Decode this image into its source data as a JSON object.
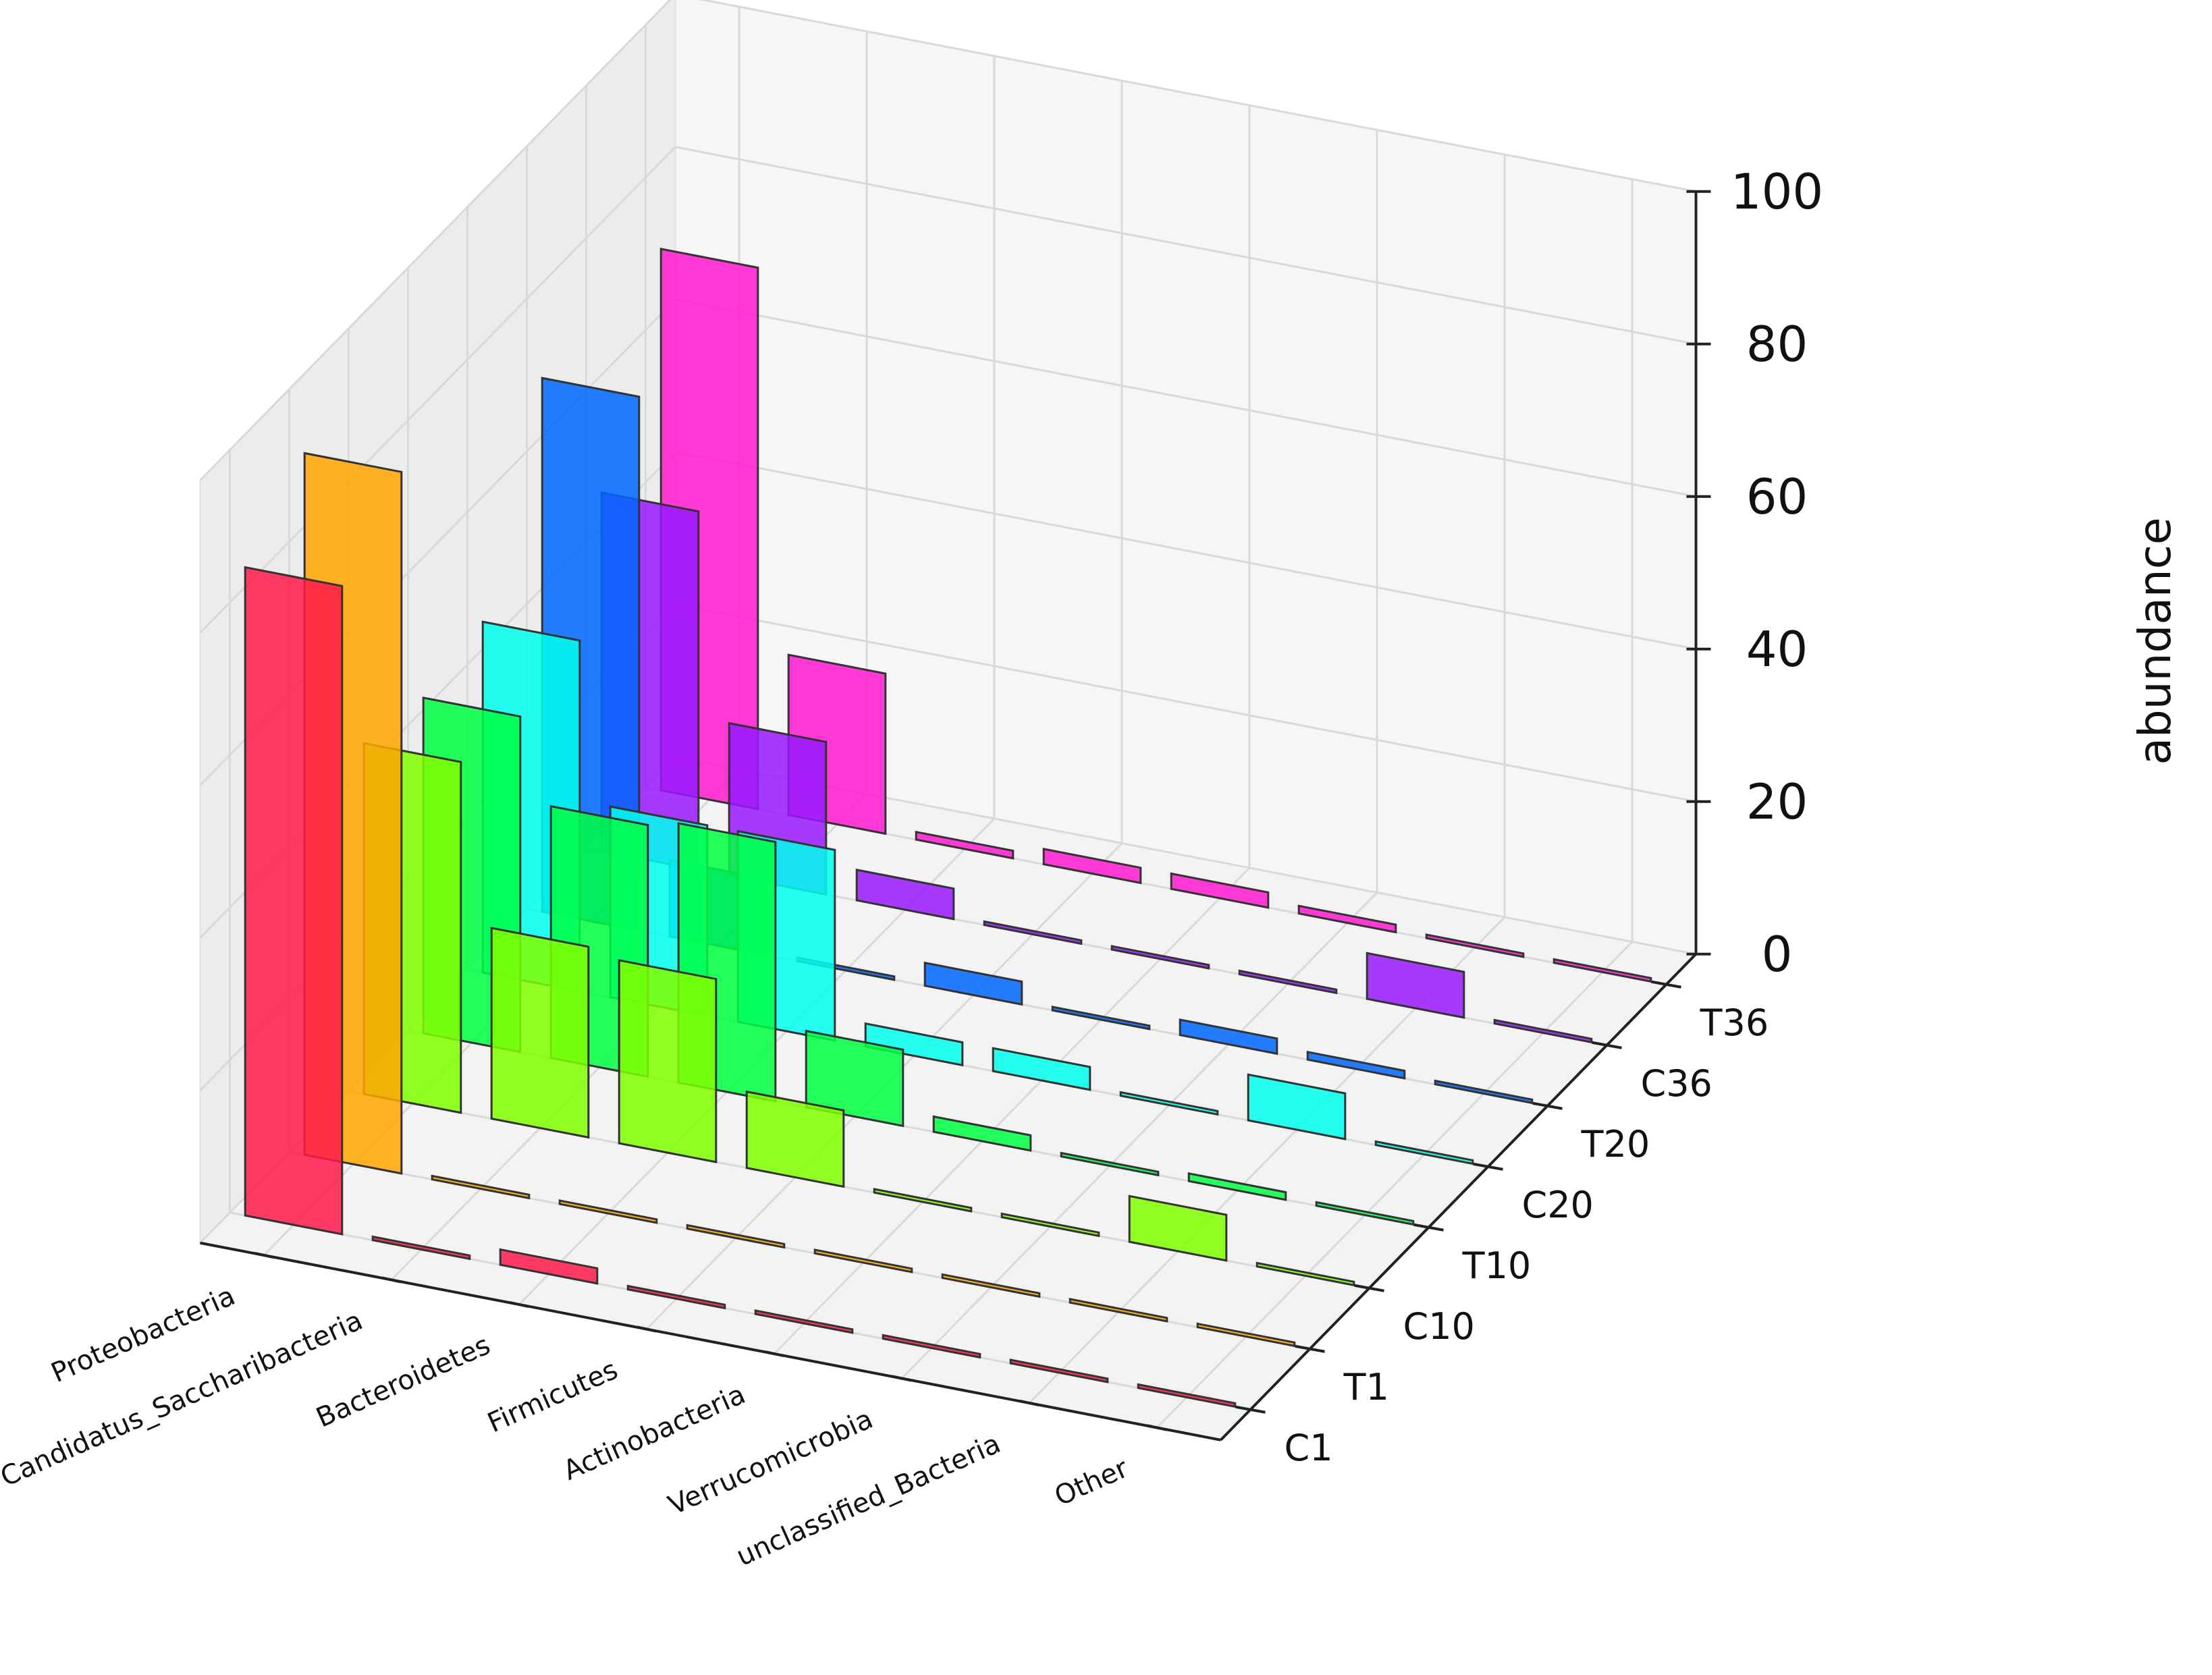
{
  "chart_data": {
    "type": "bar3d",
    "title": "",
    "xlabel": "",
    "ylabel": "",
    "zlabel": "abundance",
    "zlim": [
      0,
      100
    ],
    "z_ticks": [
      0,
      20,
      40,
      60,
      80,
      100
    ],
    "grid": true,
    "categories": [
      "Proteobacteria",
      "Candidatus_Saccharibacteria",
      "Bacteroidetes",
      "Firmicutes",
      "Actinobacteria",
      "Verrucomicrobia",
      "unclassified_Bacteria",
      "Other"
    ],
    "samples": [
      "C1",
      "T1",
      "C10",
      "T10",
      "C20",
      "T20",
      "C36",
      "T36"
    ],
    "series": [
      {
        "name": "C1",
        "color": "#ff1a4a",
        "values": [
          85,
          0,
          2,
          0,
          0,
          0,
          0,
          0
        ]
      },
      {
        "name": "T1",
        "color": "#ffa500",
        "values": [
          92,
          0,
          0,
          0,
          0,
          0,
          0,
          0
        ]
      },
      {
        "name": "C10",
        "color": "#80ff00",
        "values": [
          46,
          25,
          24,
          10,
          0,
          0,
          6,
          0
        ]
      },
      {
        "name": "T10",
        "color": "#00ff44",
        "values": [
          44,
          33,
          34,
          10,
          2,
          0,
          1,
          0
        ]
      },
      {
        "name": "C20",
        "color": "#00ffee",
        "values": [
          46,
          25,
          25,
          3,
          3,
          0,
          6,
          0
        ]
      },
      {
        "name": "T20",
        "color": "#0066ff",
        "values": [
          70,
          10,
          0,
          3,
          0,
          2,
          1,
          0
        ]
      },
      {
        "name": "C36",
        "color": "#9a1aff",
        "values": [
          47,
          20,
          4,
          0,
          0,
          0,
          6,
          0
        ]
      },
      {
        "name": "T36",
        "color": "#ff1acf",
        "values": [
          71,
          21,
          1,
          2,
          2,
          1,
          0,
          0
        ]
      }
    ]
  }
}
